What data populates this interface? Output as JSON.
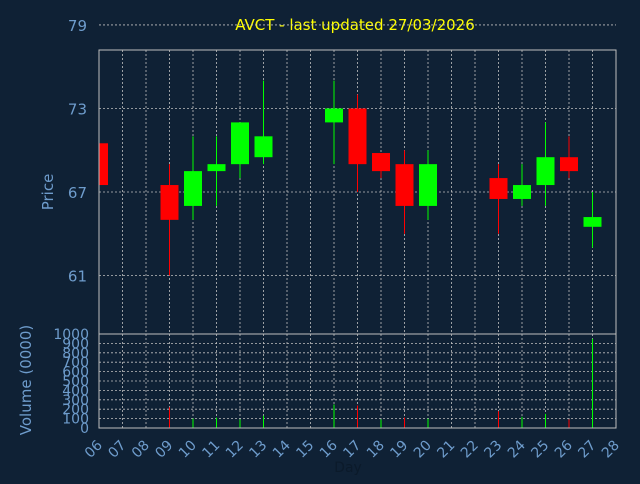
{
  "chart_data": [
    {
      "type": "candlestick",
      "title": "AVCT - last updated 27/03/2026",
      "ylabel": "Price",
      "ylim": [
        56.8,
        77.2
      ],
      "yticks": [
        61,
        67,
        73,
        79
      ],
      "grid": true,
      "up_color": "#00ff00",
      "down_color": "#ff0000",
      "categories": [
        "06",
        "07",
        "08",
        "09",
        "10",
        "11",
        "12",
        "13",
        "14",
        "15",
        "16",
        "17",
        "18",
        "19",
        "20",
        "21",
        "22",
        "23",
        "24",
        "25",
        "26",
        "27",
        "28"
      ],
      "candles": [
        {
          "day": "06",
          "open": 70.5,
          "high": 70.5,
          "low": 67.5,
          "close": 67.5
        },
        {
          "day": "09",
          "open": 67.5,
          "high": 69.0,
          "low": 61.0,
          "close": 65.0
        },
        {
          "day": "10",
          "open": 66.0,
          "high": 71.0,
          "low": 65.0,
          "close": 68.5
        },
        {
          "day": "11",
          "open": 68.5,
          "high": 71.0,
          "low": 66.0,
          "close": 69.0
        },
        {
          "day": "12",
          "open": 69.0,
          "high": 72.0,
          "low": 68.0,
          "close": 72.0
        },
        {
          "day": "13",
          "open": 69.5,
          "high": 75.0,
          "low": 69.0,
          "close": 71.0
        },
        {
          "day": "16",
          "open": 72.0,
          "high": 75.0,
          "low": 69.0,
          "close": 73.0
        },
        {
          "day": "17",
          "open": 73.0,
          "high": 74.0,
          "low": 67.0,
          "close": 69.0
        },
        {
          "day": "18",
          "open": 69.8,
          "high": 69.8,
          "low": 68.0,
          "close": 68.5
        },
        {
          "day": "19",
          "open": 69.0,
          "high": 70.0,
          "low": 64.0,
          "close": 66.0
        },
        {
          "day": "20",
          "open": 66.0,
          "high": 70.0,
          "low": 65.0,
          "close": 69.0
        },
        {
          "day": "23",
          "open": 68.0,
          "high": 69.0,
          "low": 64.0,
          "close": 66.5
        },
        {
          "day": "24",
          "open": 66.5,
          "high": 69.0,
          "low": 66.0,
          "close": 67.5
        },
        {
          "day": "25",
          "open": 67.5,
          "high": 72.0,
          "low": 66.0,
          "close": 69.5
        },
        {
          "day": "26",
          "open": 69.5,
          "high": 71.0,
          "low": 68.0,
          "close": 68.5
        },
        {
          "day": "27",
          "open": 64.5,
          "high": 67.0,
          "low": 63.0,
          "close": 65.2
        }
      ]
    },
    {
      "type": "bar",
      "ylabel": "Volume (0000)",
      "xlabel": "Day",
      "ylim": [
        0,
        1000
      ],
      "yticks": [
        0,
        100,
        200,
        300,
        400,
        500,
        600,
        700,
        800,
        900,
        1000
      ],
      "grid": true,
      "series": [
        {
          "day": "09",
          "value": 220,
          "direction": "down"
        },
        {
          "day": "10",
          "value": 100,
          "direction": "up"
        },
        {
          "day": "11",
          "value": 110,
          "direction": "up"
        },
        {
          "day": "12",
          "value": 90,
          "direction": "up"
        },
        {
          "day": "13",
          "value": 130,
          "direction": "up"
        },
        {
          "day": "16",
          "value": 250,
          "direction": "up"
        },
        {
          "day": "17",
          "value": 240,
          "direction": "down"
        },
        {
          "day": "18",
          "value": 90,
          "direction": "up"
        },
        {
          "day": "19",
          "value": 110,
          "direction": "down"
        },
        {
          "day": "20",
          "value": 100,
          "direction": "up"
        },
        {
          "day": "23",
          "value": 180,
          "direction": "down"
        },
        {
          "day": "24",
          "value": 120,
          "direction": "up"
        },
        {
          "day": "25",
          "value": 150,
          "direction": "up"
        },
        {
          "day": "26",
          "value": 90,
          "direction": "down"
        },
        {
          "day": "27",
          "value": 950,
          "direction": "up"
        }
      ]
    }
  ],
  "colors": {
    "background": "#0f2135",
    "title": "#ffff00",
    "axis_text": "#6e9ccc",
    "grid": "#c0c0c0",
    "frame": "#bfbfbf"
  }
}
